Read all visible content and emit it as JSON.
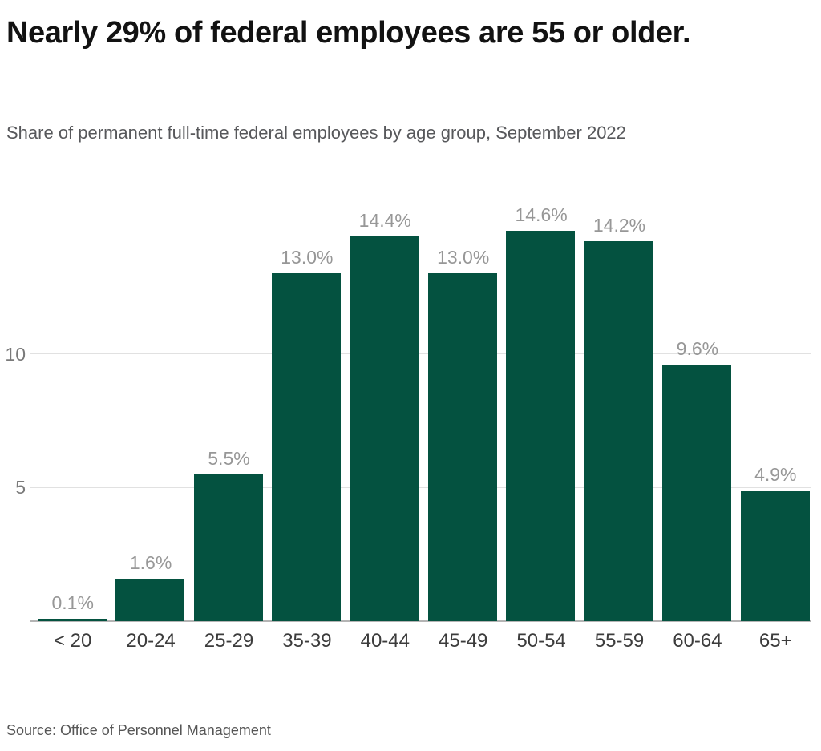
{
  "header": {
    "title": "Nearly 29% of federal employees are 55 or older.",
    "subtitle": "Share of permanent full-time federal employees by age group, September 2022"
  },
  "footer": {
    "source": "Source: Office of Personnel Management"
  },
  "chart_data": {
    "type": "bar",
    "title": "Nearly 29% of federal employees are 55 or older.",
    "subtitle": "Share of permanent full-time federal employees by age group, September 2022",
    "categories": [
      "< 20",
      "20-24",
      "25-29",
      "35-39",
      "40-44",
      "45-49",
      "50-54",
      "55-59",
      "60-64",
      "65+"
    ],
    "values": [
      0.1,
      1.6,
      5.5,
      13.0,
      14.4,
      13.0,
      14.6,
      14.2,
      9.6,
      4.9
    ],
    "bar_labels": [
      "0.1%",
      "1.6%",
      "5.5%",
      "13.0%",
      "14.4%",
      "13.0%",
      "14.6%",
      "14.2%",
      "9.6%",
      "4.9%"
    ],
    "xlabel": "",
    "ylabel": "",
    "unit": "percent",
    "ylim": [
      0,
      16.3
    ],
    "yticks": [
      5,
      10
    ],
    "ytick_labels": [
      "5",
      "10"
    ],
    "grid": "horizontal",
    "legend": "none",
    "colors": {
      "bar": "#045240",
      "value_label": "#979797",
      "ytick_label": "#7a7a7a",
      "xtick_label": "#3c3c3c",
      "gridline": "#e1e1e1",
      "axis_line": "#b4b4b4",
      "title": "#121212",
      "subtitle": "#57585b",
      "source": "#565656"
    }
  }
}
